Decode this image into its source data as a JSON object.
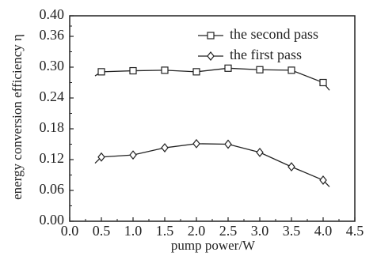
{
  "chart_data": {
    "type": "line",
    "xlabel": "pump power/W",
    "ylabel": "energy conversion efficiency η",
    "xlim": [
      0.0,
      4.5
    ],
    "ylim": [
      0.0,
      0.4
    ],
    "xticks": [
      "0.0",
      "0.5",
      "1.0",
      "1.5",
      "2.0",
      "2.5",
      "3.0",
      "3.5",
      "4.0",
      "4.5"
    ],
    "yticks": [
      "0.00",
      "0.06",
      "0.12",
      "0.18",
      "0.24",
      "0.30",
      "0.36",
      "0.40"
    ],
    "grid": false,
    "legend_position": "top-right",
    "series": [
      {
        "name": "the second pass",
        "marker": "square",
        "x": [
          0.5,
          1.0,
          1.5,
          2.0,
          2.5,
          3.0,
          3.5,
          4.0
        ],
        "y": [
          0.291,
          0.293,
          0.294,
          0.291,
          0.298,
          0.295,
          0.294,
          0.27
        ],
        "line_x": [
          0.4,
          0.5,
          1.0,
          1.5,
          2.0,
          2.5,
          3.0,
          3.5,
          4.0,
          4.1
        ],
        "line_y": [
          0.283,
          0.291,
          0.293,
          0.294,
          0.291,
          0.298,
          0.295,
          0.294,
          0.27,
          0.255
        ]
      },
      {
        "name": "the first pass",
        "marker": "diamond",
        "x": [
          0.5,
          1.0,
          1.5,
          2.0,
          2.5,
          3.0,
          3.5,
          4.0
        ],
        "y": [
          0.125,
          0.129,
          0.143,
          0.151,
          0.15,
          0.134,
          0.106,
          0.08
        ],
        "line_x": [
          0.4,
          0.5,
          1.0,
          1.5,
          2.0,
          2.5,
          3.0,
          3.5,
          4.0,
          4.1
        ],
        "line_y": [
          0.113,
          0.125,
          0.129,
          0.143,
          0.151,
          0.15,
          0.134,
          0.106,
          0.08,
          0.067
        ]
      }
    ]
  },
  "colors": {
    "axis": "#222222",
    "line": "#222222",
    "marker_fill": "#ffffff"
  }
}
